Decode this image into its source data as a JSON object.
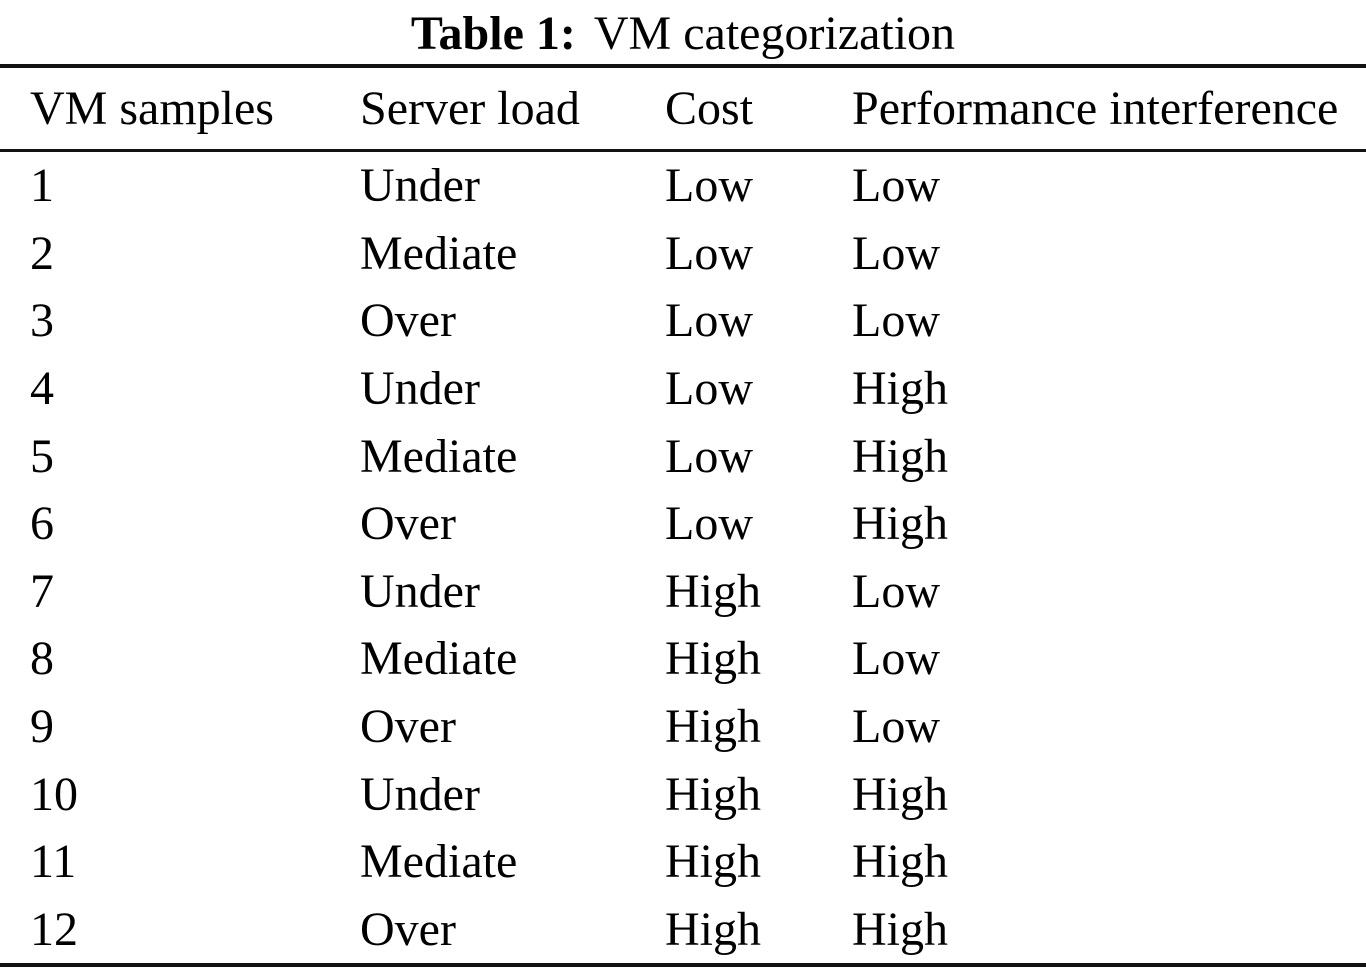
{
  "title": {
    "label": "Table 1:",
    "caption": "VM categorization"
  },
  "table": {
    "headers": [
      "VM samples",
      "Server load",
      "Cost",
      "Performance interference"
    ],
    "rows": [
      {
        "vm": "1",
        "load": "Under",
        "cost": "Low",
        "interference": "Low"
      },
      {
        "vm": "2",
        "load": "Mediate",
        "cost": "Low",
        "interference": "Low"
      },
      {
        "vm": "3",
        "load": "Over",
        "cost": "Low",
        "interference": "Low"
      },
      {
        "vm": "4",
        "load": "Under",
        "cost": "Low",
        "interference": "High"
      },
      {
        "vm": "5",
        "load": "Mediate",
        "cost": "Low",
        "interference": "High"
      },
      {
        "vm": "6",
        "load": "Over",
        "cost": "Low",
        "interference": "High"
      },
      {
        "vm": "7",
        "load": "Under",
        "cost": "High",
        "interference": "Low"
      },
      {
        "vm": "8",
        "load": "Mediate",
        "cost": "High",
        "interference": "Low"
      },
      {
        "vm": "9",
        "load": "Over",
        "cost": "High",
        "interference": "Low"
      },
      {
        "vm": "10",
        "load": "Under",
        "cost": "High",
        "interference": "High"
      },
      {
        "vm": "11",
        "load": "Mediate",
        "cost": "High",
        "interference": "High"
      },
      {
        "vm": "12",
        "load": "Over",
        "cost": "High",
        "interference": "High"
      }
    ]
  },
  "colors": {
    "text": "#000000",
    "background": "#ffffff",
    "rule": "#121212"
  }
}
